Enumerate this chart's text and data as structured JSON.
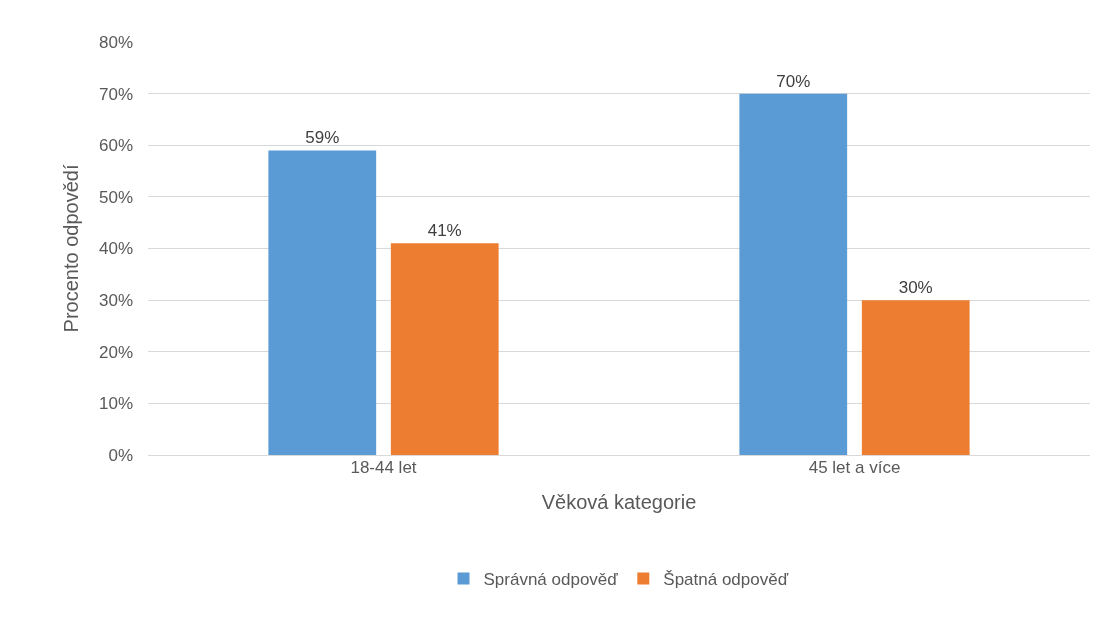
{
  "chart_data": {
    "type": "bar",
    "xlabel": "Věková kategorie",
    "ylabel": "Procento odpovědí",
    "categories": [
      "18-44 let",
      "45 let a více"
    ],
    "series": [
      {
        "name": "Správná odpověď",
        "color": "#5b9bd5",
        "values": [
          59,
          70
        ],
        "value_labels": [
          "59%",
          "70%"
        ]
      },
      {
        "name": "Špatná odpověď",
        "color": "#ed7d31",
        "values": [
          41,
          30
        ],
        "value_labels": [
          "41%",
          "30%"
        ]
      }
    ],
    "ylim": [
      0,
      80
    ],
    "yticks": [
      {
        "value": 0,
        "label": "0%"
      },
      {
        "value": 10,
        "label": "10%"
      },
      {
        "value": 20,
        "label": "20%"
      },
      {
        "value": 30,
        "label": "30%"
      },
      {
        "value": 40,
        "label": "40%"
      },
      {
        "value": 50,
        "label": "50%"
      },
      {
        "value": 60,
        "label": "60%"
      },
      {
        "value": 70,
        "label": "70%"
      },
      {
        "value": 80,
        "label": "80%"
      }
    ],
    "grid": "y",
    "legend": "bottom"
  }
}
